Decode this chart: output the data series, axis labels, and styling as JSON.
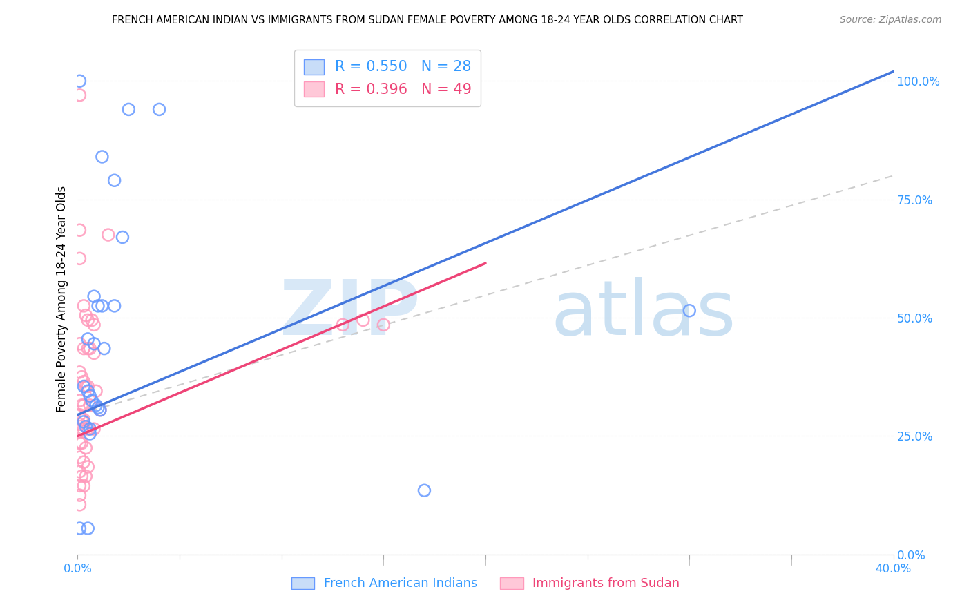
{
  "title": "FRENCH AMERICAN INDIAN VS IMMIGRANTS FROM SUDAN FEMALE POVERTY AMONG 18-24 YEAR OLDS CORRELATION CHART",
  "source": "Source: ZipAtlas.com",
  "ylabel": "Female Poverty Among 18-24 Year Olds",
  "xmin": 0.0,
  "xmax": 0.4,
  "ymin": 0.0,
  "ymax": 1.08,
  "blue_R": 0.55,
  "blue_N": 28,
  "pink_R": 0.396,
  "pink_N": 49,
  "blue_color": "#6699ff",
  "pink_color": "#ff99bb",
  "blue_label": "French American Indians",
  "pink_label": "Immigrants from Sudan",
  "watermark_zip": "ZIP",
  "watermark_atlas": "atlas",
  "blue_scatter": [
    [
      0.001,
      1.0
    ],
    [
      0.025,
      0.94
    ],
    [
      0.04,
      0.94
    ],
    [
      0.012,
      0.84
    ],
    [
      0.018,
      0.79
    ],
    [
      0.022,
      0.67
    ],
    [
      0.008,
      0.545
    ],
    [
      0.01,
      0.525
    ],
    [
      0.012,
      0.525
    ],
    [
      0.005,
      0.455
    ],
    [
      0.008,
      0.445
    ],
    [
      0.013,
      0.435
    ],
    [
      0.018,
      0.525
    ],
    [
      0.003,
      0.355
    ],
    [
      0.005,
      0.345
    ],
    [
      0.009,
      0.315
    ],
    [
      0.01,
      0.31
    ],
    [
      0.011,
      0.305
    ],
    [
      0.003,
      0.28
    ],
    [
      0.004,
      0.27
    ],
    [
      0.006,
      0.265
    ],
    [
      0.006,
      0.255
    ],
    [
      0.007,
      0.325
    ],
    [
      0.006,
      0.335
    ],
    [
      0.3,
      0.515
    ],
    [
      0.17,
      0.135
    ],
    [
      0.005,
      0.055
    ],
    [
      0.001,
      0.055
    ]
  ],
  "pink_scatter": [
    [
      0.001,
      0.97
    ],
    [
      0.001,
      0.685
    ],
    [
      0.001,
      0.625
    ],
    [
      0.015,
      0.675
    ],
    [
      0.003,
      0.525
    ],
    [
      0.004,
      0.505
    ],
    [
      0.005,
      0.495
    ],
    [
      0.007,
      0.495
    ],
    [
      0.008,
      0.485
    ],
    [
      0.001,
      0.445
    ],
    [
      0.003,
      0.435
    ],
    [
      0.005,
      0.435
    ],
    [
      0.006,
      0.435
    ],
    [
      0.008,
      0.425
    ],
    [
      0.001,
      0.385
    ],
    [
      0.002,
      0.375
    ],
    [
      0.003,
      0.365
    ],
    [
      0.004,
      0.355
    ],
    [
      0.005,
      0.355
    ],
    [
      0.009,
      0.345
    ],
    [
      0.001,
      0.325
    ],
    [
      0.002,
      0.315
    ],
    [
      0.003,
      0.315
    ],
    [
      0.006,
      0.315
    ],
    [
      0.011,
      0.305
    ],
    [
      0.001,
      0.295
    ],
    [
      0.002,
      0.285
    ],
    [
      0.003,
      0.285
    ],
    [
      0.001,
      0.275
    ],
    [
      0.002,
      0.265
    ],
    [
      0.003,
      0.265
    ],
    [
      0.005,
      0.265
    ],
    [
      0.008,
      0.265
    ],
    [
      0.001,
      0.235
    ],
    [
      0.002,
      0.235
    ],
    [
      0.004,
      0.225
    ],
    [
      0.001,
      0.205
    ],
    [
      0.003,
      0.195
    ],
    [
      0.005,
      0.185
    ],
    [
      0.001,
      0.175
    ],
    [
      0.002,
      0.165
    ],
    [
      0.004,
      0.165
    ],
    [
      0.001,
      0.145
    ],
    [
      0.003,
      0.145
    ],
    [
      0.001,
      0.125
    ],
    [
      0.001,
      0.105
    ],
    [
      0.14,
      0.495
    ],
    [
      0.15,
      0.485
    ],
    [
      0.13,
      0.485
    ]
  ],
  "blue_line": {
    "x0": 0.0,
    "y0": 0.295,
    "x1": 0.4,
    "y1": 1.02
  },
  "pink_line": {
    "x0": 0.0,
    "y0": 0.25,
    "x1": 0.2,
    "y1": 0.615
  },
  "gray_dashed_line": {
    "x0": 0.0,
    "y0": 0.295,
    "x1": 0.4,
    "y1": 0.8
  },
  "right_yticks": [
    0.0,
    0.25,
    0.5,
    0.75,
    1.0
  ],
  "right_yticklabels": [
    "0.0%",
    "25.0%",
    "50.0%",
    "75.0%",
    "100.0%"
  ],
  "bottom_xticks": [
    0.0,
    0.05,
    0.1,
    0.15,
    0.2,
    0.25,
    0.3,
    0.35,
    0.4
  ],
  "bottom_xticklabels": [
    "0.0%",
    "",
    "",
    "",
    "",
    "",
    "",
    "",
    "40.0%"
  ]
}
